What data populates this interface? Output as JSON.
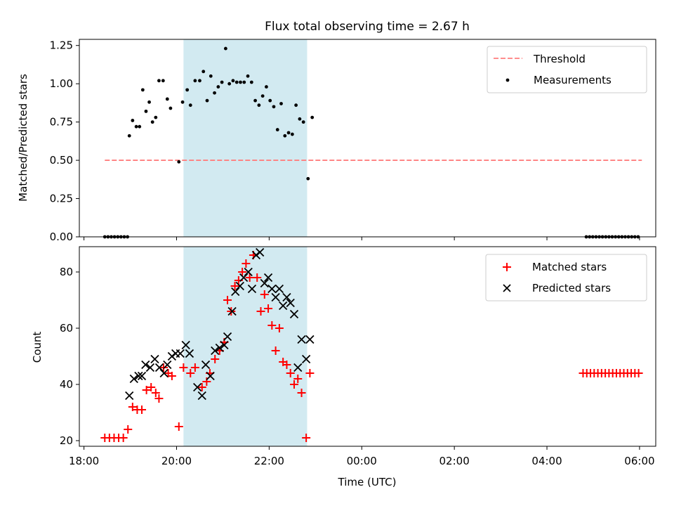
{
  "title": "Flux total observing time = 2.67 h",
  "colors": {
    "threshold": "#ff7f7f",
    "measurement": "#000000",
    "matched": "#ff0000",
    "predicted": "#000000",
    "span_fill": "#add8e6",
    "frame": "#000000"
  },
  "chart_data": [
    {
      "type": "scatter",
      "ylabel": "Matched/Predicted stars",
      "xlim": [
        -0.1,
        12.35
      ],
      "ylim": [
        0,
        1.29
      ],
      "y_ticks": [
        {
          "value": 0,
          "label": "0.00"
        },
        {
          "value": 0.25,
          "label": "0.25"
        },
        {
          "value": 0.5,
          "label": "0.50"
        },
        {
          "value": 0.75,
          "label": "0.75"
        },
        {
          "value": 1.0,
          "label": "1.00"
        },
        {
          "value": 1.25,
          "label": "1.25"
        }
      ],
      "span": {
        "from": 2.15,
        "to": 4.82
      },
      "legend_position": "top-right",
      "legend": [
        {
          "label": "Threshold",
          "marker": "dashed-line"
        },
        {
          "label": "Measurements",
          "marker": "dot"
        }
      ],
      "threshold": {
        "name": "Threshold",
        "value": 0.5,
        "x_from": 0.45,
        "x_to": 12.05
      },
      "series": [
        {
          "name": "Measurements",
          "marker": "dot",
          "points": [
            [
              0.45,
              0
            ],
            [
              0.52,
              0
            ],
            [
              0.59,
              0
            ],
            [
              0.66,
              0
            ],
            [
              0.73,
              0
            ],
            [
              0.8,
              0
            ],
            [
              0.87,
              0
            ],
            [
              0.94,
              0
            ],
            [
              0.98,
              0.66
            ],
            [
              1.05,
              0.76
            ],
            [
              1.13,
              0.72
            ],
            [
              1.2,
              0.72
            ],
            [
              1.27,
              0.96
            ],
            [
              1.34,
              0.82
            ],
            [
              1.41,
              0.88
            ],
            [
              1.48,
              0.75
            ],
            [
              1.55,
              0.78
            ],
            [
              1.62,
              1.02
            ],
            [
              1.71,
              1.02
            ],
            [
              1.8,
              0.9
            ],
            [
              1.87,
              0.84
            ],
            [
              2.05,
              0.49
            ],
            [
              2.13,
              0.88
            ],
            [
              2.23,
              0.96
            ],
            [
              2.3,
              0.86
            ],
            [
              2.4,
              1.02
            ],
            [
              2.5,
              1.02
            ],
            [
              2.58,
              1.08
            ],
            [
              2.66,
              0.89
            ],
            [
              2.74,
              1.05
            ],
            [
              2.82,
              0.94
            ],
            [
              2.9,
              0.98
            ],
            [
              2.98,
              1.01
            ],
            [
              3.06,
              1.23
            ],
            [
              3.14,
              1.0
            ],
            [
              3.22,
              1.02
            ],
            [
              3.3,
              1.01
            ],
            [
              3.38,
              1.01
            ],
            [
              3.46,
              1.01
            ],
            [
              3.54,
              1.05
            ],
            [
              3.62,
              1.01
            ],
            [
              3.7,
              0.89
            ],
            [
              3.78,
              0.86
            ],
            [
              3.86,
              0.92
            ],
            [
              3.94,
              0.98
            ],
            [
              4.02,
              0.89
            ],
            [
              4.1,
              0.85
            ],
            [
              4.18,
              0.7
            ],
            [
              4.26,
              0.87
            ],
            [
              4.34,
              0.66
            ],
            [
              4.42,
              0.68
            ],
            [
              4.5,
              0.67
            ],
            [
              4.58,
              0.86
            ],
            [
              4.66,
              0.77
            ],
            [
              4.74,
              0.75
            ],
            [
              4.84,
              0.38
            ],
            [
              4.93,
              0.78
            ],
            [
              10.85,
              0
            ],
            [
              10.92,
              0
            ],
            [
              10.99,
              0
            ],
            [
              11.06,
              0
            ],
            [
              11.13,
              0
            ],
            [
              11.2,
              0
            ],
            [
              11.27,
              0
            ],
            [
              11.34,
              0
            ],
            [
              11.41,
              0
            ],
            [
              11.48,
              0
            ],
            [
              11.55,
              0
            ],
            [
              11.62,
              0
            ],
            [
              11.69,
              0
            ],
            [
              11.76,
              0
            ],
            [
              11.83,
              0
            ],
            [
              11.9,
              0
            ],
            [
              11.97,
              0
            ]
          ]
        }
      ]
    },
    {
      "type": "scatter",
      "xlabel": "Time (UTC)",
      "ylabel": "Count",
      "xlim": [
        -0.1,
        12.35
      ],
      "ylim": [
        18,
        89
      ],
      "x_ticks": [
        {
          "value": 0,
          "label": "18:00"
        },
        {
          "value": 2,
          "label": "20:00"
        },
        {
          "value": 4,
          "label": "22:00"
        },
        {
          "value": 6,
          "label": "00:00"
        },
        {
          "value": 8,
          "label": "02:00"
        },
        {
          "value": 10,
          "label": "04:00"
        },
        {
          "value": 12,
          "label": "06:00"
        }
      ],
      "y_ticks": [
        {
          "value": 20,
          "label": "20"
        },
        {
          "value": 40,
          "label": "40"
        },
        {
          "value": 60,
          "label": "60"
        },
        {
          "value": 80,
          "label": "80"
        }
      ],
      "span": {
        "from": 2.15,
        "to": 4.82
      },
      "legend_position": "top-right",
      "legend": [
        {
          "label": "Matched stars",
          "marker": "plus"
        },
        {
          "label": "Predicted stars",
          "marker": "x"
        }
      ],
      "series": [
        {
          "name": "Matched stars",
          "marker": "plus",
          "points": [
            [
              0.45,
              21
            ],
            [
              0.55,
              21
            ],
            [
              0.65,
              21
            ],
            [
              0.75,
              21
            ],
            [
              0.85,
              21
            ],
            [
              0.95,
              24
            ],
            [
              1.05,
              32
            ],
            [
              1.15,
              31
            ],
            [
              1.25,
              31
            ],
            [
              1.35,
              38
            ],
            [
              1.45,
              39
            ],
            [
              1.55,
              37
            ],
            [
              1.62,
              35
            ],
            [
              1.72,
              46
            ],
            [
              1.82,
              44
            ],
            [
              1.9,
              43
            ],
            [
              2.05,
              25
            ],
            [
              2.15,
              46
            ],
            [
              2.3,
              44
            ],
            [
              2.4,
              46
            ],
            [
              2.55,
              39
            ],
            [
              2.65,
              41
            ],
            [
              2.72,
              44
            ],
            [
              2.83,
              49
            ],
            [
              2.93,
              52
            ],
            [
              3.03,
              55
            ],
            [
              3.1,
              70
            ],
            [
              3.18,
              66
            ],
            [
              3.26,
              75
            ],
            [
              3.34,
              77
            ],
            [
              3.42,
              80
            ],
            [
              3.5,
              83
            ],
            [
              3.58,
              78
            ],
            [
              3.66,
              86
            ],
            [
              3.74,
              78
            ],
            [
              3.82,
              66
            ],
            [
              3.9,
              72
            ],
            [
              3.98,
              67
            ],
            [
              4.06,
              61
            ],
            [
              4.14,
              52
            ],
            [
              4.22,
              60
            ],
            [
              4.3,
              48
            ],
            [
              4.38,
              47
            ],
            [
              4.46,
              44
            ],
            [
              4.54,
              40
            ],
            [
              4.62,
              42
            ],
            [
              4.7,
              37
            ],
            [
              4.8,
              21
            ],
            [
              4.88,
              44
            ],
            [
              10.78,
              44
            ],
            [
              10.86,
              44
            ],
            [
              10.94,
              44
            ],
            [
              11.02,
              44
            ],
            [
              11.1,
              44
            ],
            [
              11.18,
              44
            ],
            [
              11.26,
              44
            ],
            [
              11.34,
              44
            ],
            [
              11.42,
              44
            ],
            [
              11.5,
              44
            ],
            [
              11.58,
              44
            ],
            [
              11.66,
              44
            ],
            [
              11.74,
              44
            ],
            [
              11.82,
              44
            ],
            [
              11.9,
              44
            ],
            [
              11.98,
              44
            ]
          ]
        },
        {
          "name": "Predicted stars",
          "marker": "x",
          "points": [
            [
              0.98,
              36
            ],
            [
              1.08,
              42
            ],
            [
              1.18,
              43
            ],
            [
              1.25,
              43
            ],
            [
              1.33,
              47
            ],
            [
              1.43,
              46
            ],
            [
              1.53,
              49
            ],
            [
              1.63,
              46
            ],
            [
              1.73,
              44
            ],
            [
              1.8,
              47
            ],
            [
              1.9,
              50
            ],
            [
              1.98,
              51
            ],
            [
              2.08,
              51
            ],
            [
              2.2,
              54
            ],
            [
              2.28,
              51
            ],
            [
              2.45,
              39
            ],
            [
              2.55,
              36
            ],
            [
              2.63,
              47
            ],
            [
              2.73,
              43
            ],
            [
              2.83,
              52
            ],
            [
              2.93,
              53
            ],
            [
              3.03,
              54
            ],
            [
              3.1,
              57
            ],
            [
              3.2,
              66
            ],
            [
              3.27,
              73
            ],
            [
              3.37,
              75
            ],
            [
              3.45,
              78
            ],
            [
              3.55,
              80
            ],
            [
              3.63,
              74
            ],
            [
              3.72,
              86
            ],
            [
              3.8,
              87
            ],
            [
              3.9,
              76
            ],
            [
              3.98,
              78
            ],
            [
              4.06,
              74
            ],
            [
              4.14,
              71
            ],
            [
              4.22,
              74
            ],
            [
              4.3,
              68
            ],
            [
              4.38,
              71
            ],
            [
              4.46,
              69
            ],
            [
              4.54,
              65
            ],
            [
              4.62,
              46
            ],
            [
              4.7,
              56
            ],
            [
              4.8,
              49
            ],
            [
              4.88,
              56
            ]
          ]
        }
      ]
    }
  ]
}
